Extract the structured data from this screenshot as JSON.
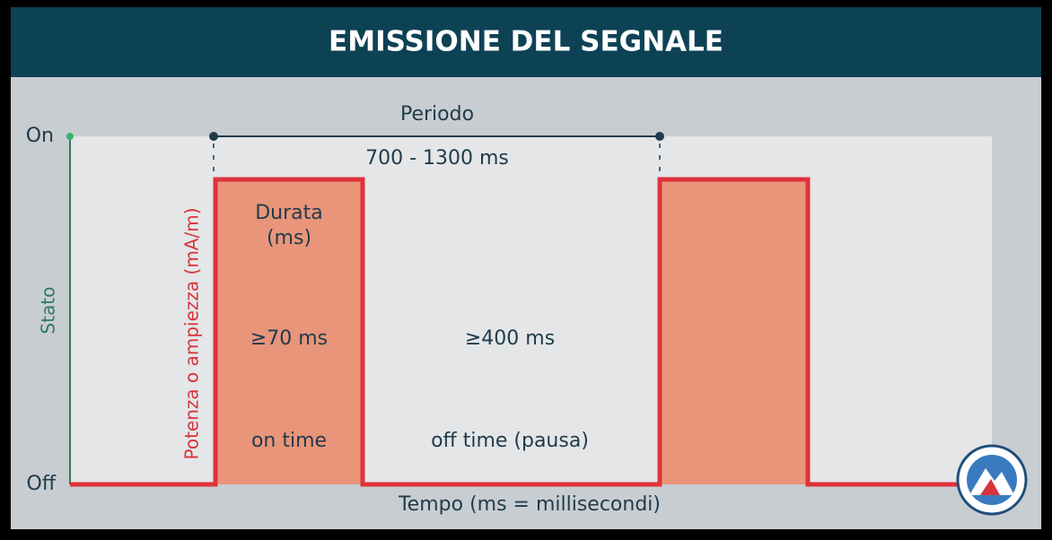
{
  "header": {
    "title": "EMISSIONE DEL SEGNALE"
  },
  "axis": {
    "on": "On",
    "off": "Off",
    "y_label": "Stato",
    "power_label": "Potenza o ampiezza (mA/m)",
    "x_label": "Tempo (ms = millisecondi)"
  },
  "period": {
    "label": "Periodo",
    "range": "700 - 1300 ms"
  },
  "pulse": {
    "duration_label": [
      "Durata",
      "(ms)"
    ],
    "min": "≥70 ms",
    "name": "on time"
  },
  "pause": {
    "min": "≥400 ms",
    "name": "off time (pausa)"
  }
}
